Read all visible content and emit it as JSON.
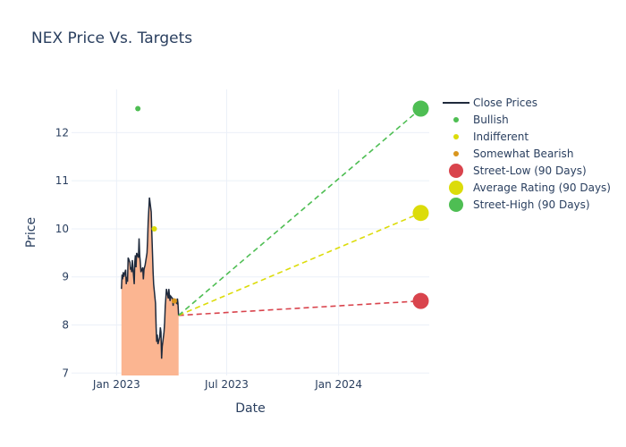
{
  "chart_data": {
    "type": "line",
    "title": "NEX Price Vs. Targets",
    "xlabel": "Date",
    "ylabel": "Price",
    "grid": true,
    "legend_position": "right",
    "xlim": [
      "2022-10-19",
      "2024-05-29"
    ],
    "ylim": [
      6.95,
      12.9
    ],
    "x_ticks": [
      {
        "date": "2023-01-01",
        "label": "Jan 2023"
      },
      {
        "date": "2023-07-01",
        "label": "Jul 2023"
      },
      {
        "date": "2024-01-01",
        "label": "Jan 2024"
      }
    ],
    "y_ticks": [
      7,
      8,
      9,
      10,
      11,
      12
    ],
    "colors": {
      "close_line": "#1f2a3c",
      "close_fill": "#fbb591",
      "bullish": "#4ebe53",
      "indifferent": "#dcdc0a",
      "somewhat_bearish": "#d9961e",
      "street_low": "#d9444d",
      "average": "#dcdc0a",
      "street_high": "#4ebe53",
      "grid": "#ebf0f8"
    },
    "close_prices": {
      "name": "Close Prices",
      "points": [
        [
          "2023-01-09",
          8.75
        ],
        [
          "2023-01-10",
          9.05
        ],
        [
          "2023-01-11",
          8.95
        ],
        [
          "2023-01-12",
          9.1
        ],
        [
          "2023-01-13",
          9.0
        ],
        [
          "2023-01-16",
          9.15
        ],
        [
          "2023-01-17",
          8.85
        ],
        [
          "2023-01-18",
          9.0
        ],
        [
          "2023-01-19",
          8.9
        ],
        [
          "2023-01-20",
          9.4
        ],
        [
          "2023-01-23",
          9.3
        ],
        [
          "2023-01-24",
          9.15
        ],
        [
          "2023-01-25",
          9.2
        ],
        [
          "2023-01-26",
          9.1
        ],
        [
          "2023-01-27",
          9.35
        ],
        [
          "2023-01-30",
          8.85
        ],
        [
          "2023-01-31",
          9.3
        ],
        [
          "2023-02-01",
          9.45
        ],
        [
          "2023-02-02",
          9.2
        ],
        [
          "2023-02-03",
          9.5
        ],
        [
          "2023-02-06",
          9.4
        ],
        [
          "2023-02-07",
          9.8
        ],
        [
          "2023-02-08",
          9.45
        ],
        [
          "2023-02-09",
          9.3
        ],
        [
          "2023-02-10",
          9.1
        ],
        [
          "2023-02-13",
          9.2
        ],
        [
          "2023-02-14",
          8.95
        ],
        [
          "2023-02-15",
          9.15
        ],
        [
          "2023-02-16",
          9.2
        ],
        [
          "2023-02-17",
          9.25
        ],
        [
          "2023-02-20",
          9.5
        ],
        [
          "2023-02-21",
          9.75
        ],
        [
          "2023-02-22",
          10.15
        ],
        [
          "2023-02-23",
          10.4
        ],
        [
          "2023-02-24",
          10.65
        ],
        [
          "2023-02-27",
          10.35
        ],
        [
          "2023-02-28",
          9.9
        ],
        [
          "2023-03-01",
          9.5
        ],
        [
          "2023-03-02",
          9.1
        ],
        [
          "2023-03-03",
          8.85
        ],
        [
          "2023-03-06",
          8.45
        ],
        [
          "2023-03-07",
          7.95
        ],
        [
          "2023-03-08",
          7.65
        ],
        [
          "2023-03-09",
          7.8
        ],
        [
          "2023-03-10",
          7.6
        ],
        [
          "2023-03-13",
          7.75
        ],
        [
          "2023-03-14",
          7.95
        ],
        [
          "2023-03-15",
          7.85
        ],
        [
          "2023-03-16",
          7.3
        ],
        [
          "2023-03-17",
          7.55
        ],
        [
          "2023-03-20",
          7.85
        ],
        [
          "2023-03-21",
          8.05
        ],
        [
          "2023-03-22",
          8.4
        ],
        [
          "2023-03-23",
          8.55
        ],
        [
          "2023-03-24",
          8.75
        ],
        [
          "2023-03-27",
          8.55
        ],
        [
          "2023-03-28",
          8.75
        ],
        [
          "2023-03-29",
          8.6
        ],
        [
          "2023-03-30",
          8.5
        ],
        [
          "2023-03-31",
          8.6
        ],
        [
          "2023-04-03",
          8.55
        ],
        [
          "2023-04-04",
          8.4
        ],
        [
          "2023-04-05",
          8.55
        ],
        [
          "2023-04-06",
          8.5
        ],
        [
          "2023-04-10",
          8.45
        ],
        [
          "2023-04-11",
          8.55
        ],
        [
          "2023-04-12",
          8.45
        ],
        [
          "2023-04-13",
          8.2
        ]
      ]
    },
    "ratings": [
      {
        "name": "Bullish",
        "key": "bullish",
        "x": "2023-02-05",
        "y": 12.5
      },
      {
        "name": "Indifferent",
        "key": "indifferent",
        "x": "2023-03-04",
        "y": 10.0
      },
      {
        "name": "Somewhat Bearish",
        "key": "somewhat_bearish",
        "x": "2023-04-06",
        "y": 8.5
      }
    ],
    "targets": {
      "start": {
        "x": "2023-04-13",
        "y": 8.2
      },
      "end_x": "2024-05-15",
      "lines": [
        {
          "name": "Street-Low (90 Days)",
          "key": "street_low",
          "y": 8.5
        },
        {
          "name": "Average Rating (90 Days)",
          "key": "average",
          "y": 10.33
        },
        {
          "name": "Street-High (90 Days)",
          "key": "street_high",
          "y": 12.5
        }
      ]
    }
  }
}
